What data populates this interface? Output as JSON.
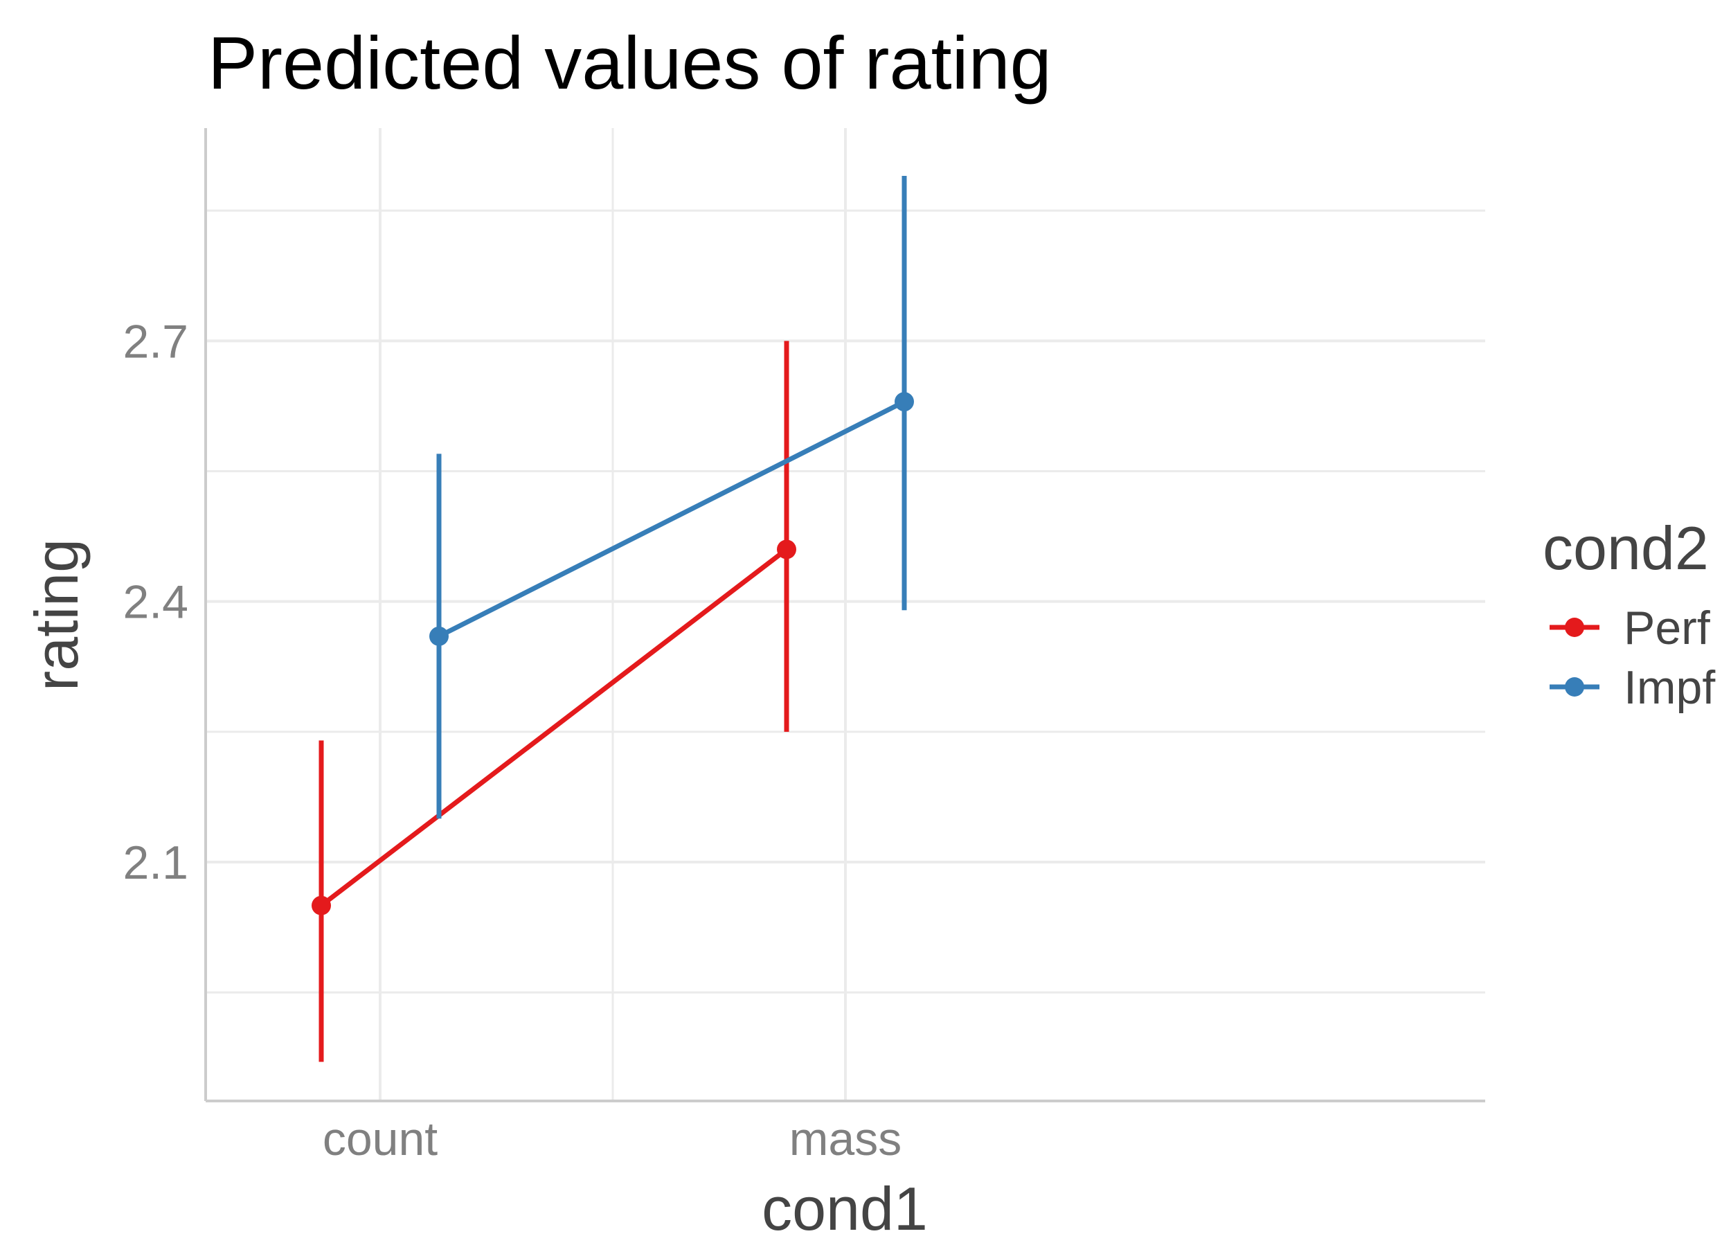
{
  "chart_data": {
    "type": "line",
    "title": "Predicted values of rating",
    "xlabel": "cond1",
    "ylabel": "rating",
    "categories": [
      "count",
      "mass"
    ],
    "yticks": [
      "2.1",
      "2.4",
      "2.7"
    ],
    "ylim": [
      1.825,
      2.945
    ],
    "grid": true,
    "legend": {
      "title": "cond2",
      "position": "right"
    },
    "series": [
      {
        "name": "Perf",
        "color": "#e41a1c",
        "values": [
          2.05,
          2.46
        ],
        "lower": [
          1.87,
          2.25
        ],
        "upper": [
          2.24,
          2.7
        ]
      },
      {
        "name": "Impf",
        "color": "#377eb8",
        "values": [
          2.36,
          2.63
        ],
        "lower": [
          2.15,
          2.39
        ],
        "upper": [
          2.57,
          2.89
        ]
      }
    ]
  }
}
